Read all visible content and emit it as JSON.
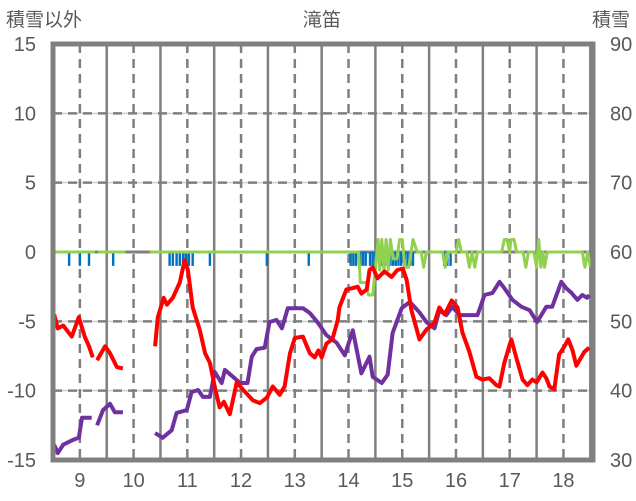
{
  "chart_data": {
    "type": "line",
    "title": "滝笛",
    "ylabel": "積雪以外",
    "y2label": "積雪",
    "xlim": [
      8.5,
      18.55
    ],
    "ylim": [
      -15,
      15
    ],
    "y2lim": [
      30,
      90
    ],
    "grid": true,
    "x_ticks": [
      9,
      10,
      11,
      12,
      13,
      14,
      15,
      16,
      17,
      18
    ],
    "y_ticks": [
      15,
      10,
      5,
      0,
      -5,
      -10,
      -15
    ],
    "y2_ticks": [
      90,
      80,
      70,
      60,
      50,
      40,
      30
    ],
    "colors": {
      "temperature": "#ff0000",
      "snow": "#7030a0",
      "other": "#92d050",
      "precip": "#0070c0",
      "axis": "#808080"
    },
    "series": [
      {
        "name": "temperature",
        "axis": "left",
        "color": "#ff0000",
        "segments": [
          [
            [
              8.52,
              -4.5
            ],
            [
              8.59,
              -5.5
            ],
            [
              8.69,
              -5.3
            ],
            [
              8.85,
              -6.1
            ],
            [
              8.98,
              -4.7
            ],
            [
              9.09,
              -6.1
            ],
            [
              9.17,
              -6.8
            ],
            [
              9.24,
              -7.6
            ]
          ],
          [
            [
              9.32,
              -7.8
            ],
            [
              9.47,
              -6.8
            ],
            [
              9.56,
              -7.3
            ],
            [
              9.69,
              -8.3
            ],
            [
              9.8,
              -8.4
            ]
          ],
          [
            [
              10.4,
              -6.8
            ],
            [
              10.45,
              -4.7
            ],
            [
              10.56,
              -3.3
            ],
            [
              10.62,
              -3.8
            ],
            [
              10.73,
              -3.3
            ],
            [
              10.86,
              -2.2
            ],
            [
              10.95,
              -0.6
            ],
            [
              11.01,
              -1.3
            ],
            [
              11.1,
              -4.0
            ],
            [
              11.23,
              -5.6
            ],
            [
              11.33,
              -7.3
            ],
            [
              11.42,
              -8.0
            ],
            [
              11.51,
              -9.7
            ],
            [
              11.6,
              -11.2
            ],
            [
              11.68,
              -10.8
            ],
            [
              11.79,
              -11.7
            ],
            [
              11.92,
              -9.4
            ],
            [
              12.03,
              -9.9
            ],
            [
              12.22,
              -10.7
            ],
            [
              12.35,
              -10.9
            ],
            [
              12.48,
              -10.5
            ],
            [
              12.59,
              -9.7
            ],
            [
              12.72,
              -10.3
            ],
            [
              12.81,
              -9.7
            ],
            [
              12.91,
              -7.3
            ],
            [
              13.0,
              -6.2
            ],
            [
              13.15,
              -6.1
            ],
            [
              13.28,
              -7.3
            ],
            [
              13.37,
              -7.6
            ],
            [
              13.44,
              -7.1
            ],
            [
              13.5,
              -7.6
            ],
            [
              13.59,
              -6.6
            ],
            [
              13.7,
              -6.3
            ],
            [
              13.8,
              -4.9
            ],
            [
              13.83,
              -4.0
            ],
            [
              13.96,
              -2.7
            ],
            [
              14.08,
              -2.6
            ],
            [
              14.17,
              -2.5
            ],
            [
              14.24,
              -3.0
            ],
            [
              14.34,
              -2.7
            ],
            [
              14.39,
              -1.3
            ],
            [
              14.45,
              -1.1
            ],
            [
              14.54,
              -1.9
            ],
            [
              14.67,
              -1.4
            ],
            [
              14.8,
              -1.8
            ],
            [
              14.91,
              -1.3
            ],
            [
              15.01,
              -1.2
            ],
            [
              15.08,
              -2.0
            ],
            [
              15.17,
              -4.2
            ],
            [
              15.27,
              -5.6
            ],
            [
              15.32,
              -6.3
            ],
            [
              15.45,
              -5.6
            ],
            [
              15.6,
              -5.1
            ],
            [
              15.69,
              -4.0
            ],
            [
              15.79,
              -4.5
            ],
            [
              15.92,
              -3.5
            ],
            [
              16.03,
              -4.0
            ],
            [
              16.12,
              -5.8
            ],
            [
              16.25,
              -7.2
            ],
            [
              16.38,
              -9.0
            ],
            [
              16.49,
              -9.2
            ],
            [
              16.62,
              -9.1
            ],
            [
              16.75,
              -9.6
            ],
            [
              16.81,
              -9.7
            ],
            [
              16.9,
              -8.0
            ],
            [
              17.03,
              -6.3
            ],
            [
              17.12,
              -7.6
            ],
            [
              17.24,
              -9.2
            ],
            [
              17.33,
              -9.6
            ],
            [
              17.42,
              -9.2
            ],
            [
              17.5,
              -9.4
            ],
            [
              17.61,
              -8.7
            ],
            [
              17.68,
              -9.1
            ],
            [
              17.74,
              -9.7
            ],
            [
              17.83,
              -9.9
            ],
            [
              17.92,
              -7.4
            ],
            [
              18.02,
              -6.8
            ],
            [
              18.09,
              -6.3
            ],
            [
              18.17,
              -7.1
            ],
            [
              18.24,
              -8.2
            ],
            [
              18.33,
              -7.6
            ],
            [
              18.39,
              -7.2
            ],
            [
              18.48,
              -6.9
            ]
          ]
        ]
      },
      {
        "name": "snow_depth",
        "axis": "right",
        "color": "#7030a0",
        "segments": [
          [
            [
              8.52,
              32.2
            ],
            [
              8.59,
              31.0
            ],
            [
              8.69,
              32.2
            ],
            [
              8.87,
              32.9
            ],
            [
              8.98,
              33.2
            ],
            [
              9.04,
              36.1
            ],
            [
              9.22,
              36.1
            ]
          ],
          [
            [
              9.32,
              35.0
            ],
            [
              9.43,
              37.2
            ],
            [
              9.56,
              38.1
            ],
            [
              9.65,
              36.9
            ],
            [
              9.8,
              36.9
            ]
          ],
          [
            [
              10.4,
              33.9
            ],
            [
              10.54,
              33.2
            ],
            [
              10.71,
              34.3
            ],
            [
              10.8,
              36.8
            ],
            [
              10.99,
              37.2
            ],
            [
              11.08,
              39.8
            ],
            [
              11.2,
              40.1
            ],
            [
              11.29,
              39.1
            ],
            [
              11.42,
              39.1
            ],
            [
              11.51,
              42.7
            ],
            [
              11.64,
              41.1
            ],
            [
              11.7,
              43.0
            ],
            [
              11.85,
              42.0
            ],
            [
              11.98,
              41.1
            ],
            [
              12.12,
              41.1
            ],
            [
              12.2,
              44.9
            ],
            [
              12.29,
              46.0
            ],
            [
              12.44,
              46.2
            ],
            [
              12.53,
              49.9
            ],
            [
              12.66,
              50.2
            ],
            [
              12.76,
              49.0
            ],
            [
              12.87,
              51.9
            ],
            [
              13.15,
              51.9
            ],
            [
              13.28,
              51.2
            ],
            [
              13.43,
              49.8
            ],
            [
              13.59,
              48.0
            ],
            [
              13.78,
              46.9
            ],
            [
              13.93,
              45.1
            ],
            [
              14.08,
              48.7
            ],
            [
              14.24,
              42.5
            ],
            [
              14.39,
              44.9
            ],
            [
              14.45,
              42.0
            ],
            [
              14.62,
              41.1
            ],
            [
              14.73,
              42.3
            ],
            [
              14.82,
              48.3
            ],
            [
              14.99,
              51.9
            ],
            [
              15.14,
              52.8
            ],
            [
              15.32,
              51.3
            ],
            [
              15.45,
              49.9
            ],
            [
              15.6,
              49.0
            ],
            [
              15.69,
              51.6
            ],
            [
              15.82,
              50.9
            ],
            [
              15.93,
              52.1
            ],
            [
              16.07,
              50.9
            ],
            [
              16.4,
              50.9
            ],
            [
              16.53,
              53.8
            ],
            [
              16.68,
              54.1
            ],
            [
              16.81,
              55.7
            ],
            [
              16.9,
              54.8
            ],
            [
              17.05,
              53.1
            ],
            [
              17.22,
              52.1
            ],
            [
              17.37,
              51.6
            ],
            [
              17.51,
              49.9
            ],
            [
              17.68,
              52.1
            ],
            [
              17.79,
              52.1
            ],
            [
              17.96,
              55.7
            ],
            [
              18.05,
              54.8
            ],
            [
              18.15,
              54.1
            ],
            [
              18.26,
              53.1
            ],
            [
              18.35,
              53.8
            ],
            [
              18.44,
              53.4
            ],
            [
              18.48,
              53.8
            ]
          ]
        ]
      },
      {
        "name": "other",
        "axis": "left",
        "color": "#92d050",
        "segments": [
          [
            [
              8.52,
              0
            ],
            [
              9.28,
              0
            ]
          ],
          [
            [
              9.34,
              0
            ],
            [
              9.85,
              0
            ]
          ],
          [
            [
              10.3,
              0
            ],
            [
              14.19,
              0
            ],
            [
              14.22,
              -2.2
            ],
            [
              14.33,
              -2.2
            ],
            [
              14.37,
              -3.1
            ],
            [
              14.45,
              -3.1
            ],
            [
              14.5,
              -1.2
            ],
            [
              14.55,
              0.9
            ],
            [
              14.58,
              -1.3
            ],
            [
              14.62,
              0.9
            ],
            [
              14.66,
              -1.3
            ],
            [
              14.7,
              0.9
            ],
            [
              14.74,
              -1.3
            ],
            [
              14.78,
              0.9
            ],
            [
              14.83,
              -0.5
            ],
            [
              14.9,
              -0.5
            ],
            [
              14.95,
              0.9
            ],
            [
              15.0,
              0.9
            ],
            [
              15.05,
              -1.1
            ],
            [
              15.12,
              -1.1
            ],
            [
              15.2,
              0.9
            ],
            [
              15.28,
              0
            ],
            [
              15.35,
              0
            ],
            [
              15.4,
              -1.1
            ],
            [
              15.45,
              0
            ],
            [
              15.75,
              0
            ],
            [
              15.8,
              -1.1
            ],
            [
              15.85,
              0
            ],
            [
              16.0,
              0
            ],
            [
              16.05,
              0.9
            ],
            [
              16.1,
              0
            ],
            [
              16.2,
              0
            ],
            [
              16.25,
              -1.1
            ],
            [
              16.3,
              0
            ],
            [
              16.35,
              -1.1
            ],
            [
              16.4,
              0
            ],
            [
              16.85,
              0
            ],
            [
              16.9,
              0.9
            ],
            [
              16.95,
              0.9
            ],
            [
              17.0,
              0
            ],
            [
              17.02,
              0.9
            ],
            [
              17.08,
              0.9
            ],
            [
              17.13,
              0
            ],
            [
              17.25,
              0
            ],
            [
              17.3,
              -1.1
            ],
            [
              17.35,
              0
            ],
            [
              17.45,
              0
            ],
            [
              17.5,
              -1.1
            ],
            [
              17.54,
              0.9
            ],
            [
              17.58,
              -1.1
            ],
            [
              17.62,
              0
            ],
            [
              17.65,
              -1.1
            ],
            [
              17.7,
              0
            ],
            [
              18.35,
              0
            ],
            [
              18.4,
              -1.1
            ],
            [
              18.45,
              0
            ],
            [
              18.5,
              -1.1
            ]
          ]
        ]
      }
    ],
    "precip_bars": {
      "name": "precipitation",
      "color": "#0070c0",
      "width_days": 0.045,
      "values": [
        [
          8.52,
          -2.0
        ],
        [
          8.8,
          -1.0
        ],
        [
          9.0,
          -1.0
        ],
        [
          9.17,
          -1.0
        ],
        [
          9.62,
          -1.0
        ],
        [
          10.67,
          -1.0
        ],
        [
          10.73,
          -1.0
        ],
        [
          10.8,
          -1.0
        ],
        [
          10.86,
          -1.0
        ],
        [
          10.92,
          -1.0
        ],
        [
          10.97,
          -1.0
        ],
        [
          11.03,
          -1.0
        ],
        [
          11.1,
          -1.0
        ],
        [
          11.42,
          -1.0
        ],
        [
          12.48,
          -1.0
        ],
        [
          13.26,
          -1.0
        ],
        [
          14.04,
          -1.0
        ],
        [
          14.09,
          -1.0
        ],
        [
          14.14,
          -1.0
        ],
        [
          14.22,
          -1.0
        ],
        [
          14.27,
          -1.0
        ],
        [
          14.32,
          -1.0
        ],
        [
          14.4,
          -1.0
        ],
        [
          14.45,
          -1.0
        ],
        [
          14.5,
          -1.0
        ],
        [
          14.58,
          -1.0
        ],
        [
          14.63,
          -1.0
        ],
        [
          14.68,
          -1.0
        ],
        [
          14.73,
          -1.0
        ],
        [
          14.78,
          -1.0
        ],
        [
          14.83,
          -1.0
        ],
        [
          14.88,
          -1.0
        ],
        [
          14.93,
          -1.0
        ],
        [
          14.98,
          -1.0
        ],
        [
          15.05,
          -1.0
        ],
        [
          15.1,
          -1.0
        ],
        [
          15.15,
          -1.0
        ],
        [
          15.2,
          -1.0
        ],
        [
          15.78,
          -1.0
        ],
        [
          15.84,
          -1.0
        ],
        [
          15.9,
          -1.0
        ]
      ]
    }
  }
}
